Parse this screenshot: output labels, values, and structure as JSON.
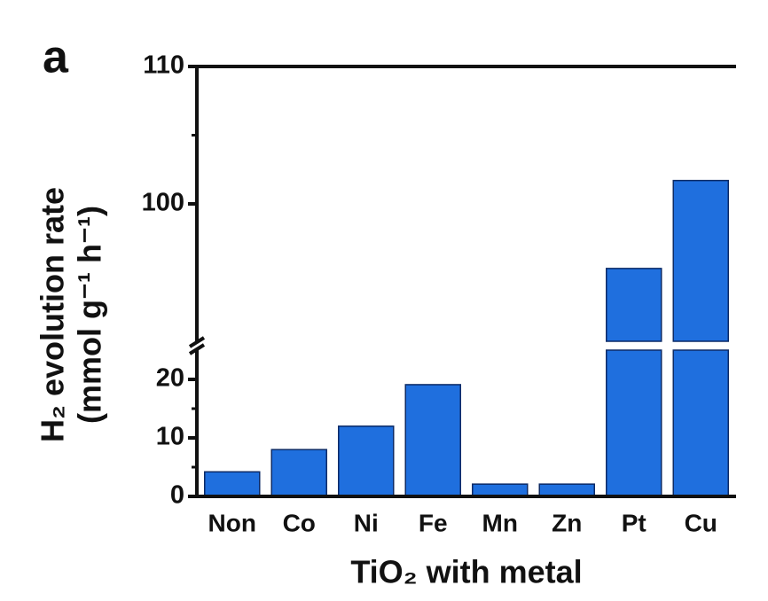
{
  "chart_data": {
    "type": "bar",
    "panel_label": "a",
    "ylabel": [
      "H₂ evolution rate",
      "(mmol g⁻¹ h⁻¹)"
    ],
    "xlabel": "TiO₂ with metal",
    "categories": [
      "Non",
      "Co",
      "Ni",
      "Fe",
      "Mn",
      "Zn",
      "Pt",
      "Cu"
    ],
    "values": [
      4.2,
      8.0,
      12.0,
      19.1,
      2.1,
      2.1,
      95.3,
      101.7
    ],
    "color": "#1f6fde",
    "ylim": [
      0,
      110
    ],
    "ybreak": [
      25,
      90
    ],
    "yticks": [
      0,
      10,
      20,
      100,
      110
    ],
    "yminorticks": [
      5,
      15,
      105
    ]
  }
}
